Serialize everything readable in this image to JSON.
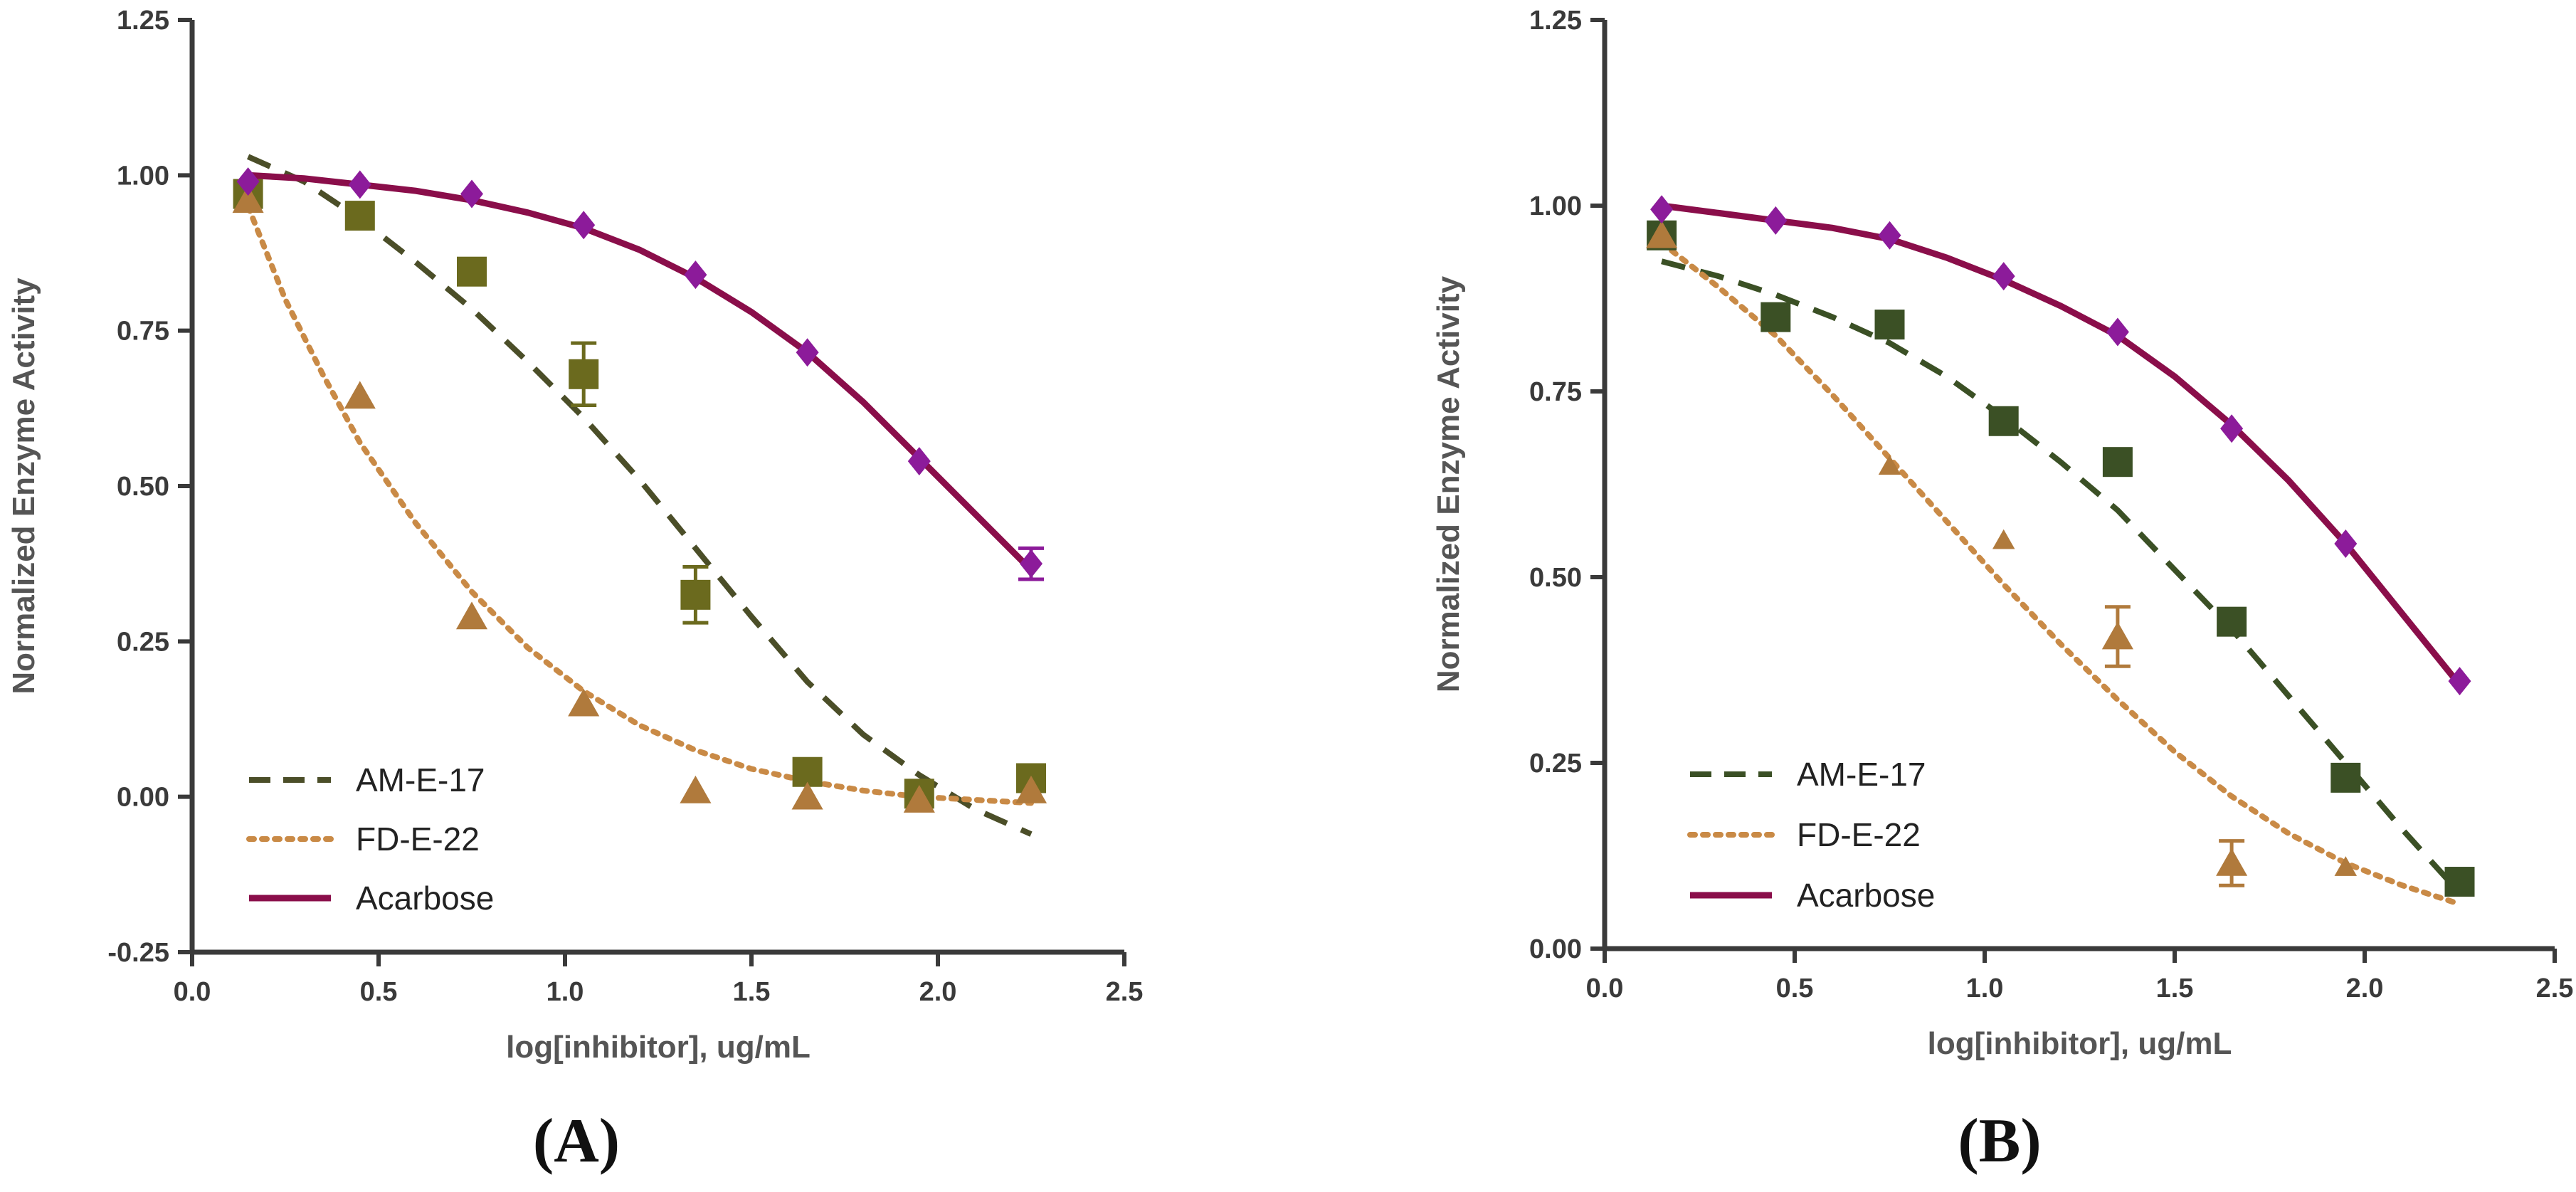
{
  "figure_labels": [
    "(A)",
    "(B)"
  ],
  "colors": {
    "AM-E-17_A": "#6b6a1e",
    "AM-E-17_A_line": "#4b4e28",
    "AM-E-17_B": "#3b5025",
    "FD-E-22": "#b07a3c",
    "FD-E-22_line": "#c98a46",
    "Acarbose": "#8a0e4a",
    "Acarbose_marker": "#8c1b9a",
    "axis": "#3a3a3a"
  },
  "chart_data": [
    {
      "type": "scatter",
      "panel": "(A)",
      "xlabel": "log[inhibitor], ug/mL",
      "ylabel": "Normalized Enzyme Activity",
      "xlim": [
        0.0,
        2.5
      ],
      "ylim": [
        -0.25,
        1.25
      ],
      "xticks": [
        "0.0",
        "0.5",
        "1.0",
        "1.5",
        "2.0",
        "2.5"
      ],
      "yticks": [
        "-0.25",
        "0.00",
        "0.25",
        "0.50",
        "0.75",
        "1.00",
        "1.25"
      ],
      "legend": "bottom-left",
      "series": [
        {
          "name": "AM-E-17",
          "marker": "square",
          "line": "dashed",
          "x": [
            0.15,
            0.45,
            0.75,
            1.05,
            1.35,
            1.65,
            1.95,
            2.25
          ],
          "y": [
            0.97,
            0.935,
            0.845,
            0.68,
            0.325,
            0.04,
            0.005,
            0.03
          ],
          "err": [
            0.02,
            0.01,
            0.01,
            0.05,
            0.045,
            0.01,
            0.01,
            0.01
          ],
          "fit": [
            [
              0.15,
              1.03
            ],
            [
              0.3,
              0.99
            ],
            [
              0.45,
              0.93
            ],
            [
              0.6,
              0.86
            ],
            [
              0.75,
              0.785
            ],
            [
              0.9,
              0.7
            ],
            [
              1.05,
              0.61
            ],
            [
              1.2,
              0.51
            ],
            [
              1.35,
              0.4
            ],
            [
              1.5,
              0.29
            ],
            [
              1.65,
              0.185
            ],
            [
              1.8,
              0.1
            ],
            [
              1.95,
              0.035
            ],
            [
              2.1,
              -0.02
            ],
            [
              2.25,
              -0.06
            ]
          ]
        },
        {
          "name": "FD-E-22",
          "marker": "triangle",
          "line": "dotted",
          "x": [
            0.15,
            0.45,
            0.75,
            1.05,
            1.35,
            1.65,
            1.95,
            2.25
          ],
          "y": [
            0.96,
            0.645,
            0.29,
            0.15,
            0.01,
            0.0,
            -0.005,
            0.01
          ],
          "err": [
            0.01,
            0.01,
            0.01,
            0.01,
            0.01,
            0.01,
            0.01,
            0.01
          ],
          "fit": [
            [
              0.15,
              0.95
            ],
            [
              0.25,
              0.8
            ],
            [
              0.35,
              0.68
            ],
            [
              0.45,
              0.57
            ],
            [
              0.6,
              0.44
            ],
            [
              0.75,
              0.33
            ],
            [
              0.9,
              0.24
            ],
            [
              1.05,
              0.17
            ],
            [
              1.2,
              0.115
            ],
            [
              1.35,
              0.075
            ],
            [
              1.5,
              0.045
            ],
            [
              1.65,
              0.025
            ],
            [
              1.8,
              0.01
            ],
            [
              1.95,
              0.0
            ],
            [
              2.1,
              -0.005
            ],
            [
              2.25,
              -0.01
            ]
          ]
        },
        {
          "name": "Acarbose",
          "marker": "diamond",
          "line": "solid",
          "x": [
            0.15,
            0.45,
            0.75,
            1.05,
            1.35,
            1.65,
            1.95,
            2.25
          ],
          "y": [
            0.99,
            0.985,
            0.97,
            0.92,
            0.84,
            0.715,
            0.54,
            0.375
          ],
          "err": [
            0.005,
            0.005,
            0.005,
            0.005,
            0.005,
            0.005,
            0.005,
            0.025
          ],
          "fit": [
            [
              0.15,
              1.0
            ],
            [
              0.3,
              0.995
            ],
            [
              0.45,
              0.985
            ],
            [
              0.6,
              0.975
            ],
            [
              0.75,
              0.96
            ],
            [
              0.9,
              0.94
            ],
            [
              1.05,
              0.915
            ],
            [
              1.2,
              0.88
            ],
            [
              1.35,
              0.835
            ],
            [
              1.5,
              0.78
            ],
            [
              1.65,
              0.715
            ],
            [
              1.8,
              0.635
            ],
            [
              1.95,
              0.545
            ],
            [
              2.1,
              0.455
            ],
            [
              2.25,
              0.365
            ]
          ]
        }
      ]
    },
    {
      "type": "scatter",
      "panel": "(B)",
      "xlabel": "log[inhibitor], ug/mL",
      "ylabel": "Normalized Enzyme Activity",
      "xlim": [
        0.0,
        2.5
      ],
      "ylim": [
        0.0,
        1.25
      ],
      "xticks": [
        "0.0",
        "0.5",
        "1.0",
        "1.5",
        "2.0",
        "2.5"
      ],
      "yticks": [
        "0.00",
        "0.25",
        "0.50",
        "0.75",
        "1.00",
        "1.25"
      ],
      "legend": "bottom-left",
      "series": [
        {
          "name": "AM-E-17",
          "marker": "square",
          "line": "dashed",
          "x": [
            0.15,
            0.45,
            0.75,
            1.05,
            1.35,
            1.65,
            1.95,
            2.25
          ],
          "y": [
            0.96,
            0.85,
            0.84,
            0.71,
            0.655,
            0.44,
            0.23,
            0.09
          ],
          "err": [
            0.01,
            0.01,
            0.01,
            0.01,
            0.01,
            0.01,
            0.01,
            0.01
          ],
          "fit": [
            [
              0.15,
              0.925
            ],
            [
              0.3,
              0.905
            ],
            [
              0.45,
              0.88
            ],
            [
              0.6,
              0.85
            ],
            [
              0.75,
              0.815
            ],
            [
              0.9,
              0.77
            ],
            [
              1.05,
              0.715
            ],
            [
              1.2,
              0.655
            ],
            [
              1.35,
              0.59
            ],
            [
              1.5,
              0.51
            ],
            [
              1.65,
              0.43
            ],
            [
              1.8,
              0.34
            ],
            [
              1.95,
              0.25
            ],
            [
              2.1,
              0.16
            ],
            [
              2.25,
              0.075
            ]
          ]
        },
        {
          "name": "FD-E-22",
          "marker": "triangle",
          "line": "dotted",
          "x": [
            0.15,
            0.75,
            1.05,
            1.35,
            1.65,
            1.95
          ],
          "y": [
            0.96,
            0.65,
            0.55,
            0.42,
            0.115,
            0.11
          ],
          "err": [
            0.005,
            0.005,
            0.005,
            0.04,
            0.03,
            0.005
          ],
          "fit": [
            [
              0.15,
              0.95
            ],
            [
              0.3,
              0.89
            ],
            [
              0.45,
              0.825
            ],
            [
              0.6,
              0.745
            ],
            [
              0.75,
              0.66
            ],
            [
              0.9,
              0.575
            ],
            [
              1.05,
              0.49
            ],
            [
              1.2,
              0.41
            ],
            [
              1.35,
              0.335
            ],
            [
              1.5,
              0.265
            ],
            [
              1.65,
              0.205
            ],
            [
              1.8,
              0.155
            ],
            [
              1.95,
              0.115
            ],
            [
              2.1,
              0.085
            ],
            [
              2.25,
              0.06
            ]
          ]
        },
        {
          "name": "Acarbose",
          "marker": "diamond",
          "line": "solid",
          "x": [
            0.15,
            0.45,
            0.75,
            1.05,
            1.35,
            1.65,
            1.95,
            2.25
          ],
          "y": [
            0.995,
            0.98,
            0.96,
            0.905,
            0.83,
            0.7,
            0.545,
            0.36
          ],
          "err": [
            0.005,
            0.005,
            0.005,
            0.005,
            0.005,
            0.005,
            0.005,
            0.005
          ],
          "fit": [
            [
              0.15,
              1.0
            ],
            [
              0.3,
              0.99
            ],
            [
              0.45,
              0.98
            ],
            [
              0.6,
              0.97
            ],
            [
              0.75,
              0.955
            ],
            [
              0.9,
              0.93
            ],
            [
              1.05,
              0.9
            ],
            [
              1.2,
              0.865
            ],
            [
              1.35,
              0.825
            ],
            [
              1.5,
              0.77
            ],
            [
              1.65,
              0.705
            ],
            [
              1.8,
              0.63
            ],
            [
              1.95,
              0.545
            ],
            [
              2.1,
              0.45
            ],
            [
              2.25,
              0.355
            ]
          ]
        }
      ]
    }
  ]
}
